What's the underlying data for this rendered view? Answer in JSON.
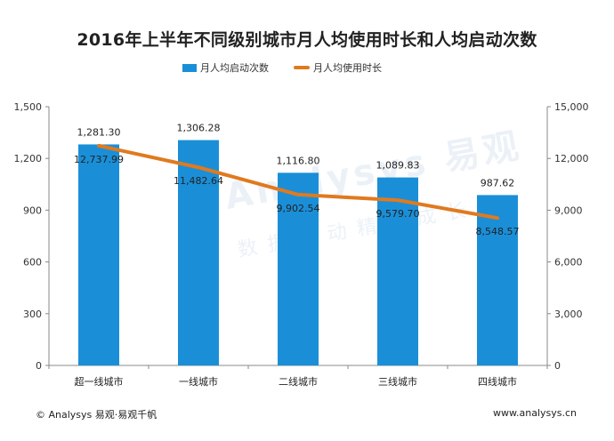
{
  "watermark": {
    "text": "Analysys 易观",
    "subtext": "数据驱动精益成长"
  },
  "footer": {
    "left": "© Analysys 易观·易观千帆",
    "right": "www.analysys.cn"
  },
  "colors": {
    "bar": "#1a8fd8",
    "line": "#e07a1f",
    "axis": "#888888",
    "grid": "#dddddd"
  },
  "chart_data": {
    "type": "bar",
    "title": "2016年上半年不同级别城市月人均使用时长和人均启动次数",
    "xlabel": "",
    "ylabel": "",
    "categories": [
      "超一线城市",
      "一线城市",
      "二线城市",
      "三线城市",
      "四线城市"
    ],
    "series": [
      {
        "name": "月人均启动次数",
        "type": "bar",
        "axis": "left",
        "values": [
          1281.3,
          1306.28,
          1116.8,
          1089.83,
          987.62
        ],
        "labels": [
          "1,281.30",
          "1,306.28",
          "1,116.80",
          "1,089.83",
          "987.62"
        ]
      },
      {
        "name": "月人均使用时长",
        "type": "line",
        "axis": "right",
        "values": [
          12737.99,
          11482.64,
          9902.54,
          9579.7,
          8548.57
        ],
        "labels": [
          "12,737.99",
          "11,482.64",
          "9,902.54",
          "9,579.70",
          "8,548.57"
        ]
      }
    ],
    "ylim_left": [
      0,
      1500
    ],
    "yticks_left": [
      "0",
      "300",
      "600",
      "900",
      "1,200",
      "1,500"
    ],
    "ylim_right": [
      0,
      15000
    ],
    "yticks_right": [
      "0",
      "3,000",
      "6,000",
      "9,000",
      "12,000",
      "15,000"
    ],
    "grid": false,
    "legend_position": "top-center"
  }
}
